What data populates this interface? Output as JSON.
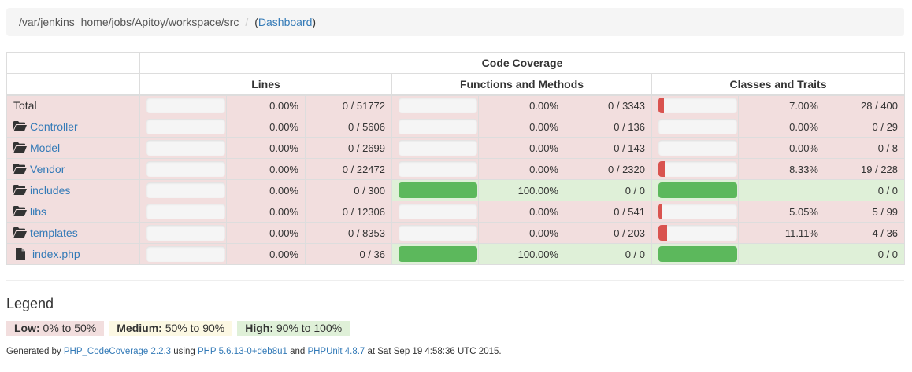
{
  "breadcrumb": {
    "path": "/var/jenkins_home/jobs/Apitoy/workspace/src",
    "separator": "/",
    "link_open": "(",
    "link_label": "Dashboard",
    "link_close": ")"
  },
  "table": {
    "caption": "Code Coverage",
    "groups": [
      "Lines",
      "Functions and Methods",
      "Classes and Traits"
    ],
    "rows": [
      {
        "name": "Total",
        "icon": "none",
        "link": false,
        "lines": {
          "pct": "0.00%",
          "ratio": "0 / 51772",
          "fill": 0,
          "level": "low"
        },
        "functions": {
          "pct": "0.00%",
          "ratio": "0 / 3343",
          "fill": 0,
          "level": "low"
        },
        "classes": {
          "pct": "7.00%",
          "ratio": "28 / 400",
          "fill": 7,
          "level": "low"
        }
      },
      {
        "name": "Controller",
        "icon": "folder-icon",
        "link": true,
        "lines": {
          "pct": "0.00%",
          "ratio": "0 / 5606",
          "fill": 0,
          "level": "low"
        },
        "functions": {
          "pct": "0.00%",
          "ratio": "0 / 136",
          "fill": 0,
          "level": "low"
        },
        "classes": {
          "pct": "0.00%",
          "ratio": "0 / 29",
          "fill": 0,
          "level": "low"
        }
      },
      {
        "name": "Model",
        "icon": "folder-icon",
        "link": true,
        "lines": {
          "pct": "0.00%",
          "ratio": "0 / 2699",
          "fill": 0,
          "level": "low"
        },
        "functions": {
          "pct": "0.00%",
          "ratio": "0 / 143",
          "fill": 0,
          "level": "low"
        },
        "classes": {
          "pct": "0.00%",
          "ratio": "0 / 8",
          "fill": 0,
          "level": "low"
        }
      },
      {
        "name": "Vendor",
        "icon": "folder-icon",
        "link": true,
        "lines": {
          "pct": "0.00%",
          "ratio": "0 / 22472",
          "fill": 0,
          "level": "low"
        },
        "functions": {
          "pct": "0.00%",
          "ratio": "0 / 2320",
          "fill": 0,
          "level": "low"
        },
        "classes": {
          "pct": "8.33%",
          "ratio": "19 / 228",
          "fill": 8.33,
          "level": "low"
        }
      },
      {
        "name": "includes",
        "icon": "folder-icon",
        "link": true,
        "lines": {
          "pct": "0.00%",
          "ratio": "0 / 300",
          "fill": 0,
          "level": "low"
        },
        "functions": {
          "pct": "100.00%",
          "ratio": "0 / 0",
          "fill": 100,
          "level": "high"
        },
        "classes": {
          "pct": "",
          "ratio": "0 / 0",
          "fill": 100,
          "level": "na"
        }
      },
      {
        "name": "libs",
        "icon": "folder-icon",
        "link": true,
        "lines": {
          "pct": "0.00%",
          "ratio": "0 / 12306",
          "fill": 0,
          "level": "low"
        },
        "functions": {
          "pct": "0.00%",
          "ratio": "0 / 541",
          "fill": 0,
          "level": "low"
        },
        "classes": {
          "pct": "5.05%",
          "ratio": "5 / 99",
          "fill": 5.05,
          "level": "low"
        }
      },
      {
        "name": "templates",
        "icon": "folder-icon",
        "link": true,
        "lines": {
          "pct": "0.00%",
          "ratio": "0 / 8353",
          "fill": 0,
          "level": "low"
        },
        "functions": {
          "pct": "0.00%",
          "ratio": "0 / 203",
          "fill": 0,
          "level": "low"
        },
        "classes": {
          "pct": "11.11%",
          "ratio": "4 / 36",
          "fill": 11.11,
          "level": "low"
        }
      },
      {
        "name": "index.php",
        "icon": "file-icon",
        "link": true,
        "lines": {
          "pct": "0.00%",
          "ratio": "0 / 36",
          "fill": 0,
          "level": "low"
        },
        "functions": {
          "pct": "100.00%",
          "ratio": "0 / 0",
          "fill": 100,
          "level": "high"
        },
        "classes": {
          "pct": "",
          "ratio": "0 / 0",
          "fill": 100,
          "level": "na"
        }
      }
    ]
  },
  "legend": {
    "title": "Legend",
    "items": [
      {
        "label": "Low:",
        "range": " 0% to 50%"
      },
      {
        "label": "Medium:",
        "range": " 50% to 90%"
      },
      {
        "label": "High:",
        "range": " 90% to 100%"
      }
    ]
  },
  "footer": {
    "prefix": "Generated by ",
    "tool_link": "PHP_CodeCoverage 2.2.3",
    "using": " using ",
    "php_link": "PHP 5.6.13-0+deb8u1",
    "and": " and ",
    "phpunit_link": "PHPUnit 4.8.7",
    "suffix": " at Sat Sep 19 4:58:36 UTC 2015."
  },
  "colors": {
    "low_bg": "#f2dede",
    "medium_bg": "#fcf8e3",
    "high_bg": "#dff0d8",
    "bar_red": "#d9534f",
    "bar_green": "#5cb85c",
    "link": "#337ab7"
  }
}
